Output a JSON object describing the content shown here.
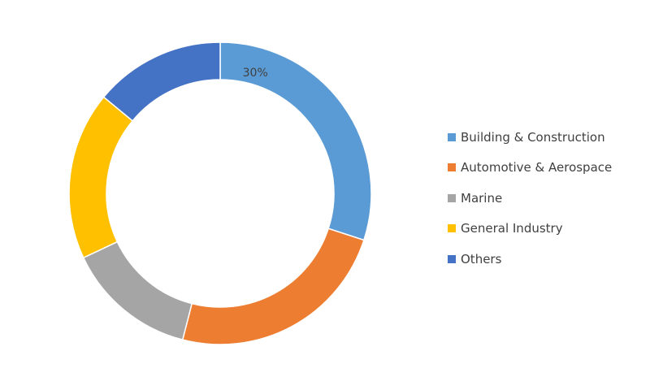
{
  "chart_data": {
    "type": "pie",
    "variant": "donut",
    "title": "",
    "categories": [
      "Building & Construction",
      "Automotive & Aerospace",
      "Marine",
      "General Industry",
      "Others"
    ],
    "values": [
      30,
      24,
      14,
      18,
      14
    ],
    "colors": [
      "#5B9BD5",
      "#ED7D31",
      "#A5A5A5",
      "#FFC000",
      "#4472C4"
    ],
    "data_labels": [
      "30%",
      "",
      "",
      "",
      ""
    ],
    "legend_position": "right",
    "start_angle": "top",
    "direction": "clockwise"
  }
}
